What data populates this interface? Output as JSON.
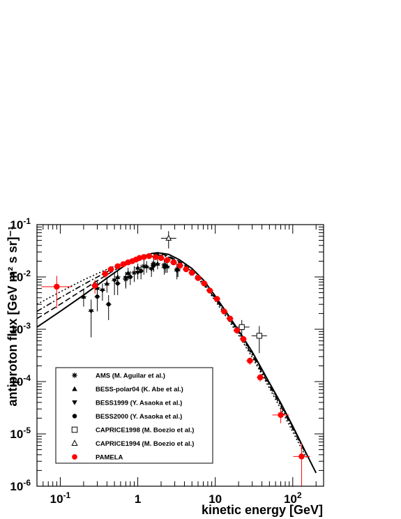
{
  "chart_data": {
    "type": "scatter",
    "xlabel": "kinetic energy [GeV]",
    "ylabel": "antiproton flux [GeV m² s sr]⁻¹",
    "x_scale": "log",
    "y_scale": "log",
    "xlim": [
      0.05,
      250
    ],
    "ylim": [
      1e-06,
      0.1
    ],
    "x_ticks": [
      {
        "value": 0.1,
        "label": "10",
        "exp": "-1"
      },
      {
        "value": 1,
        "label": "1",
        "exp": ""
      },
      {
        "value": 10,
        "label": "10",
        "exp": ""
      },
      {
        "value": 100,
        "label": "10",
        "exp": "2"
      }
    ],
    "y_ticks": [
      {
        "value": 1e-06,
        "label": "10",
        "exp": "-6"
      },
      {
        "value": 1e-05,
        "label": "10",
        "exp": "-5"
      },
      {
        "value": 0.0001,
        "label": "10",
        "exp": "-4"
      },
      {
        "value": 0.001,
        "label": "10",
        "exp": "-3"
      },
      {
        "value": 0.01,
        "label": "10",
        "exp": "-2"
      },
      {
        "value": 0.1,
        "label": "10",
        "exp": "-1"
      }
    ],
    "grid": false,
    "legend_position": "bottom-left",
    "series": [
      {
        "name": "AMS (M. Aguilar et al.)",
        "marker": "star",
        "color": "#000000",
        "points": [
          [
            0.7,
            0.009,
            0.003
          ],
          [
            0.9,
            0.012,
            0.004
          ],
          [
            1.2,
            0.016,
            0.005
          ],
          [
            1.6,
            0.018,
            0.005
          ],
          [
            2.2,
            0.017,
            0.005
          ],
          [
            3.2,
            0.014,
            0.004
          ]
        ]
      },
      {
        "name": "BESS-polar04 (K. Abe et al.)",
        "marker": "triangle-up",
        "color": "#000000",
        "points": [
          [
            0.2,
            0.0042,
            0.0015
          ],
          [
            0.3,
            0.0062,
            0.002
          ],
          [
            0.4,
            0.0075,
            0.0025
          ],
          [
            0.55,
            0.01,
            0.003
          ],
          [
            0.75,
            0.012,
            0.003
          ],
          [
            1.0,
            0.015,
            0.003
          ],
          [
            1.3,
            0.016,
            0.004
          ],
          [
            1.8,
            0.018,
            0.004
          ],
          [
            2.4,
            0.016,
            0.004
          ],
          [
            3.3,
            0.014,
            0.004
          ]
        ]
      },
      {
        "name": "BESS1999 (Y. Asaoka et al.)",
        "marker": "triangle-down",
        "color": "#000000",
        "points": [
          [
            0.25,
            0.0022,
            0.0015
          ],
          [
            0.35,
            0.0055,
            0.002
          ],
          [
            0.5,
            0.0085,
            0.004
          ],
          [
            0.7,
            0.0095,
            0.003
          ],
          [
            1.0,
            0.012,
            0.003
          ],
          [
            1.5,
            0.014,
            0.004
          ],
          [
            2.2,
            0.015,
            0.004
          ],
          [
            3.2,
            0.013,
            0.004
          ]
        ]
      },
      {
        "name": "BESS2000 (Y. Asaoka et al.)",
        "marker": "circle",
        "color": "#000000",
        "points": [
          [
            0.3,
            0.0042,
            0.002
          ],
          [
            0.42,
            0.003,
            0.0015
          ],
          [
            0.55,
            0.0075,
            0.003
          ],
          [
            0.8,
            0.01,
            0.003
          ],
          [
            1.1,
            0.013,
            0.004
          ],
          [
            1.6,
            0.0165,
            0.004
          ],
          [
            2.3,
            0.016,
            0.004
          ]
        ]
      },
      {
        "name": "CAPRICE1998 (M. Boezio et al.)",
        "marker": "square-open",
        "color": "#000000",
        "points": [
          [
            22,
            0.0011,
            0.0004
          ],
          [
            37,
            0.00075,
            0.0004
          ]
        ]
      },
      {
        "name": "CAPRICE1994 (M. Boezio et al.)",
        "marker": "triangle-open",
        "color": "#000000",
        "points": [
          [
            2.5,
            0.055,
            0.02
          ]
        ]
      },
      {
        "name": "PAMELA",
        "marker": "circle",
        "color": "#ff0000",
        "points": [
          [
            0.09,
            0.0065,
            0.004
          ],
          [
            0.28,
            0.0068,
            0.002
          ],
          [
            0.38,
            0.0115,
            0.002
          ],
          [
            0.45,
            0.014,
            0.002
          ],
          [
            0.55,
            0.016,
            0.002
          ],
          [
            0.65,
            0.0175,
            0.002
          ],
          [
            0.75,
            0.019,
            0.002
          ],
          [
            0.85,
            0.02,
            0.002
          ],
          [
            0.95,
            0.0215,
            0.002
          ],
          [
            1.05,
            0.023,
            0.002
          ],
          [
            1.2,
            0.024,
            0.002
          ],
          [
            1.4,
            0.025,
            0.002
          ],
          [
            1.7,
            0.024,
            0.002
          ],
          [
            2.0,
            0.023,
            0.002
          ],
          [
            2.4,
            0.021,
            0.002
          ],
          [
            2.9,
            0.019,
            0.002
          ],
          [
            3.5,
            0.0165,
            0.0015
          ],
          [
            4.2,
            0.014,
            0.0015
          ],
          [
            5.0,
            0.012,
            0.0012
          ],
          [
            6.0,
            0.0095,
            0.001
          ],
          [
            7.2,
            0.0075,
            0.0008
          ],
          [
            8.5,
            0.0055,
            0.0006
          ],
          [
            10.5,
            0.0038,
            0.0004
          ],
          [
            13,
            0.0022,
            0.0003
          ],
          [
            15.5,
            0.0016,
            0.0002
          ],
          [
            19,
            0.00095,
            0.00012
          ],
          [
            23,
            0.00065,
            0.0001
          ],
          [
            28,
            0.00025,
            4e-05
          ],
          [
            38,
            0.00012,
            2e-05
          ],
          [
            70,
            2.3e-05,
            7e-06
          ],
          [
            130,
            3.7e-06,
            3e-06
          ]
        ]
      }
    ],
    "curves": [
      {
        "style": "solid",
        "x": [
          0.05,
          0.1,
          0.2,
          0.4,
          0.7,
          1.0,
          1.5,
          1.8,
          2.5,
          3.5,
          5,
          7,
          10,
          15,
          20,
          30,
          50,
          70,
          100,
          150,
          200
        ],
        "y": [
          0.0011,
          0.0022,
          0.0045,
          0.0095,
          0.017,
          0.023,
          0.028,
          0.029,
          0.027,
          0.021,
          0.0145,
          0.0088,
          0.0043,
          0.0018,
          0.00095,
          0.00037,
          9.5e-05,
          3.9e-05,
          1.4e-05,
          4.2e-06,
          1.8e-06
        ]
      },
      {
        "style": "dashed",
        "x": [
          0.05,
          0.1,
          0.2,
          0.4,
          0.7,
          1.0,
          1.5,
          2.0,
          2.5,
          3.5,
          5,
          7,
          10,
          15,
          20,
          30,
          50,
          70,
          100,
          150
        ],
        "y": [
          0.0016,
          0.003,
          0.0058,
          0.011,
          0.018,
          0.023,
          0.027,
          0.0275,
          0.025,
          0.0195,
          0.0135,
          0.0082,
          0.004,
          0.0017,
          0.0009,
          0.00035,
          9e-05,
          3.7e-05,
          1.35e-05,
          4.2e-06
        ]
      },
      {
        "style": "dash-dot",
        "x": [
          0.05,
          0.1,
          0.2,
          0.4,
          0.7,
          1.0,
          1.5,
          2.0,
          2.5,
          3.5,
          5,
          7,
          10,
          15,
          20,
          30,
          50,
          70,
          100,
          150
        ],
        "y": [
          0.0022,
          0.004,
          0.0072,
          0.0125,
          0.019,
          0.023,
          0.026,
          0.026,
          0.024,
          0.0185,
          0.0128,
          0.0078,
          0.0038,
          0.0016,
          0.00085,
          0.00032,
          8.3e-05,
          3.4e-05,
          1.25e-05,
          4e-06
        ]
      },
      {
        "style": "dotted",
        "x": [
          0.05,
          0.1,
          0.2,
          0.4,
          0.7,
          1.0,
          1.5,
          2.0,
          2.5,
          3.5,
          5,
          7,
          10,
          15,
          20,
          30,
          50,
          70,
          100,
          150
        ],
        "y": [
          0.003,
          0.0052,
          0.0088,
          0.014,
          0.0195,
          0.023,
          0.025,
          0.024,
          0.022,
          0.017,
          0.0118,
          0.0072,
          0.0035,
          0.00145,
          0.00077,
          0.00029,
          7.5e-05,
          3e-05,
          1.1e-05,
          3.5e-06
        ]
      }
    ]
  }
}
